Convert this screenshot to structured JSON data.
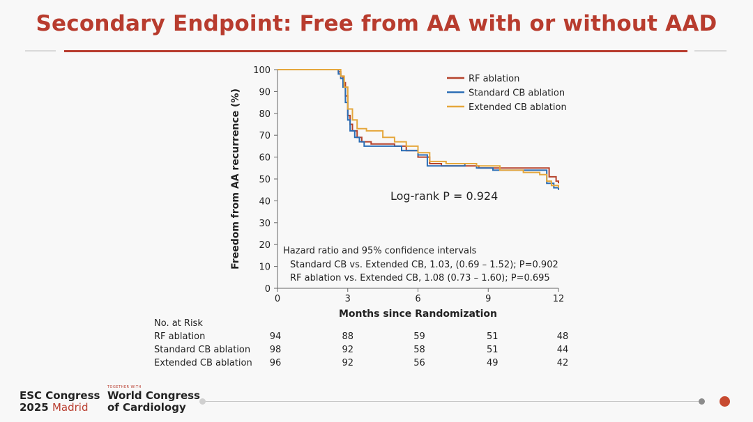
{
  "slide": {
    "title": "Secondary Endpoint: Free from AA with or without AAD"
  },
  "colors": {
    "title": "#b83c2e",
    "rf": "#b5432c",
    "standard": "#2a6db5",
    "extended": "#e5a73c"
  },
  "chart_data": {
    "type": "line",
    "xlabel": "Months since Randomization",
    "ylabel": "Freedom from AA recurrence (%)",
    "xlim": [
      0,
      12
    ],
    "ylim": [
      0,
      100
    ],
    "xticks": [
      0,
      3,
      6,
      9,
      12
    ],
    "yticks": [
      0,
      10,
      20,
      30,
      40,
      50,
      60,
      70,
      80,
      90,
      100
    ],
    "legend": [
      "RF ablation",
      "Standard CB ablation",
      "Extended CB ablation"
    ],
    "legend_position": "top-right",
    "annotation_logrank": "Log-rank P = 0.924",
    "hazard_title": "Hazard ratio and 95% confidence intervals",
    "hazard_line1": "Standard CB vs. Extended CB, 1.03, (0.69 – 1.52); P=0.902",
    "hazard_line2": "RF ablation vs. Extended CB, 1.08 (0.73 – 1.60); P=0.695",
    "series": [
      {
        "name": "RF ablation",
        "points": [
          [
            0,
            100
          ],
          [
            2.5,
            100
          ],
          [
            2.6,
            99
          ],
          [
            2.7,
            97
          ],
          [
            2.8,
            94
          ],
          [
            2.9,
            88
          ],
          [
            3.0,
            79
          ],
          [
            3.1,
            75
          ],
          [
            3.2,
            72
          ],
          [
            3.4,
            69
          ],
          [
            3.6,
            67
          ],
          [
            4,
            66
          ],
          [
            5,
            65
          ],
          [
            5.5,
            63
          ],
          [
            6,
            60
          ],
          [
            6.5,
            57
          ],
          [
            7,
            56
          ],
          [
            8,
            56
          ],
          [
            8.6,
            55
          ],
          [
            9.5,
            55
          ],
          [
            11.4,
            55
          ],
          [
            11.6,
            51
          ],
          [
            11.9,
            49
          ],
          [
            12,
            48
          ]
        ]
      },
      {
        "name": "Standard CB ablation",
        "points": [
          [
            0,
            100
          ],
          [
            2.5,
            100
          ],
          [
            2.6,
            98
          ],
          [
            2.7,
            96
          ],
          [
            2.8,
            92
          ],
          [
            2.9,
            85
          ],
          [
            3.0,
            77
          ],
          [
            3.1,
            72
          ],
          [
            3.3,
            69
          ],
          [
            3.5,
            67
          ],
          [
            3.7,
            65
          ],
          [
            4.5,
            65
          ],
          [
            5.3,
            63
          ],
          [
            6,
            61
          ],
          [
            6.4,
            56
          ],
          [
            7,
            56
          ],
          [
            8,
            57
          ],
          [
            8.5,
            55
          ],
          [
            9.2,
            54
          ],
          [
            10.5,
            54
          ],
          [
            11.3,
            54
          ],
          [
            11.5,
            48
          ],
          [
            11.8,
            46
          ],
          [
            12,
            45
          ]
        ]
      },
      {
        "name": "Extended CB ablation",
        "points": [
          [
            0,
            100
          ],
          [
            2.6,
            100
          ],
          [
            2.7,
            97
          ],
          [
            2.85,
            92
          ],
          [
            3.0,
            82
          ],
          [
            3.2,
            77
          ],
          [
            3.4,
            73
          ],
          [
            3.8,
            72
          ],
          [
            4.2,
            72
          ],
          [
            4.5,
            69
          ],
          [
            5,
            67
          ],
          [
            5.5,
            65
          ],
          [
            6,
            62
          ],
          [
            6.5,
            58
          ],
          [
            7.2,
            57
          ],
          [
            8.5,
            56
          ],
          [
            9.5,
            54
          ],
          [
            10.5,
            53
          ],
          [
            11.2,
            52
          ],
          [
            11.5,
            49
          ],
          [
            11.7,
            47
          ],
          [
            12,
            46
          ]
        ]
      }
    ]
  },
  "risk_table": {
    "header": "No. at Risk",
    "rows": [
      {
        "label": "RF ablation",
        "values": [
          "94",
          "88",
          "59",
          "51",
          "48"
        ]
      },
      {
        "label": "Standard CB ablation",
        "values": [
          "98",
          "92",
          "58",
          "51",
          "44"
        ]
      },
      {
        "label": "Extended CB ablation",
        "values": [
          "96",
          "92",
          "56",
          "49",
          "42"
        ]
      }
    ]
  },
  "footer": {
    "esc_line1": "ESC Congress",
    "esc_year": "2025",
    "esc_city": "Madrid",
    "together_with": "TOGETHER WITH",
    "wcc_line1": "World Congress",
    "wcc_line2": "of Cardiology"
  }
}
